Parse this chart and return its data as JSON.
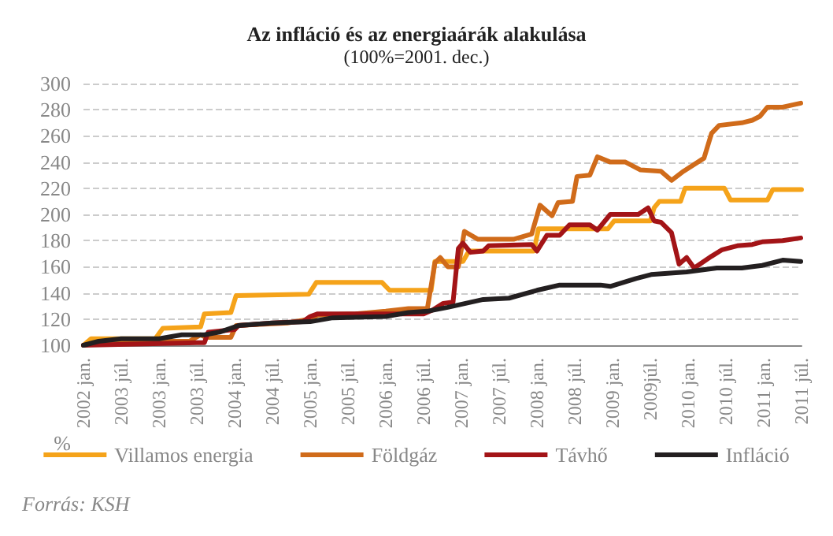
{
  "chart_data": {
    "type": "line",
    "title": "Az infláció és az energiaárák alakulása",
    "subtitle": "(100%=2001. dec.)",
    "ylabel": "%",
    "annotations": [
      "Forrás: KSH"
    ],
    "xlim": [
      2002,
      2011.5
    ],
    "xticks": [
      {
        "value": 2002,
        "label": "2002 jan."
      },
      {
        "value": 2002.5,
        "label": "2003 júl."
      },
      {
        "value": 2003,
        "label": "2003 jan."
      },
      {
        "value": 2003.5,
        "label": "2003 júl."
      },
      {
        "value": 2004,
        "label": "2004 jan."
      },
      {
        "value": 2004.5,
        "label": "2004 júl."
      },
      {
        "value": 2005,
        "label": "2005 jan."
      },
      {
        "value": 2005.5,
        "label": "2005 júl."
      },
      {
        "value": 2006,
        "label": "2006 jan."
      },
      {
        "value": 2006.5,
        "label": "2006 júl."
      },
      {
        "value": 2007,
        "label": "2007 jan."
      },
      {
        "value": 2007.5,
        "label": "2007 júl."
      },
      {
        "value": 2008,
        "label": "2008 jan."
      },
      {
        "value": 2008.5,
        "label": "2008 júl."
      },
      {
        "value": 2009,
        "label": "2009 jan."
      },
      {
        "value": 2009.5,
        "label": "2009júl."
      },
      {
        "value": 2010,
        "label": "2010 jan."
      },
      {
        "value": 2010.5,
        "label": "2010 júl."
      },
      {
        "value": 2011,
        "label": "2011 jan."
      },
      {
        "value": 2011.5,
        "label": "2011 júl."
      }
    ],
    "ylim": [
      100,
      300
    ],
    "yticks": [
      100,
      120,
      140,
      160,
      180,
      200,
      220,
      240,
      260,
      280,
      300
    ],
    "grid": "y",
    "legend": "bottom",
    "marker": "none",
    "line_style": "solid",
    "series": [
      {
        "name": "Villamos energia",
        "color": "#f5a31a",
        "x": [
          2002,
          2002.1,
          2002.95,
          2003.05,
          2003.55,
          2003.6,
          2003.95,
          2004.02,
          2004.98,
          2005.08,
          2005.95,
          2006.05,
          2006.6,
          2006.65,
          2007.02,
          2007.1,
          2007.96,
          2008.02,
          2008.94,
          2009.02,
          2009.5,
          2009.55,
          2009.62,
          2009.9,
          2009.96,
          2010.48,
          2010.56,
          2011.05,
          2011.12,
          2011.5
        ],
        "values": [
          100,
          105,
          105,
          113,
          114,
          124,
          125,
          138,
          139,
          148,
          148,
          142,
          142,
          164,
          164,
          172,
          172,
          189,
          189,
          195,
          195,
          205,
          210,
          210,
          220,
          220,
          211,
          211,
          219,
          219
        ]
      },
      {
        "name": "Földgáz",
        "color": "#d06b1a",
        "x": [
          2002,
          2002.2,
          2003.0,
          2003.4,
          2003.55,
          2003.62,
          2003.95,
          2004.02,
          2004.7,
          2005.0,
          2005.1,
          2005.6,
          2005.8,
          2006.0,
          2006.3,
          2006.55,
          2006.65,
          2006.72,
          2006.82,
          2006.96,
          2007.04,
          2007.22,
          2007.69,
          2007.93,
          2008.04,
          2008.2,
          2008.28,
          2008.47,
          2008.53,
          2008.7,
          2008.8,
          2008.97,
          2009.17,
          2009.37,
          2009.64,
          2009.78,
          2009.94,
          2010.21,
          2010.31,
          2010.41,
          2010.71,
          2010.85,
          2010.95,
          2011.05,
          2011.25,
          2011.49
        ],
        "values": [
          100,
          102,
          103,
          103,
          108,
          106,
          106,
          115,
          117,
          120,
          123,
          124,
          125,
          126,
          128,
          128,
          163,
          167,
          160,
          160,
          187,
          181,
          181,
          185,
          207,
          199,
          209,
          210,
          229,
          230,
          244,
          240,
          240,
          234,
          233,
          226,
          233,
          243,
          262,
          268,
          270,
          272,
          275,
          282,
          282,
          285
        ]
      },
      {
        "name": "Távhő",
        "color": "#a31417",
        "x": [
          2002,
          2003.5,
          2003.6,
          2003.65,
          2004.0,
          2004.05,
          2004.5,
          2004.9,
          2005.0,
          2005.1,
          2006.5,
          2006.62,
          2006.76,
          2006.89,
          2006.96,
          2007.02,
          2007.12,
          2007.29,
          2007.36,
          2007.93,
          2008.0,
          2008.13,
          2008.3,
          2008.43,
          2008.7,
          2008.8,
          2008.97,
          2009.34,
          2009.47,
          2009.55,
          2009.64,
          2009.78,
          2009.88,
          2009.98,
          2010.08,
          2010.18,
          2010.31,
          2010.45,
          2010.65,
          2010.85,
          2010.98,
          2011.25,
          2011.49
        ],
        "values": [
          100,
          102,
          102,
          110,
          112,
          115,
          117,
          118,
          122,
          124,
          124,
          127,
          132,
          133,
          174,
          178,
          171,
          172,
          176,
          177,
          172,
          184,
          184,
          192,
          192,
          188,
          200,
          200,
          205,
          195,
          194,
          186,
          162,
          167,
          159,
          163,
          168,
          173,
          176,
          177,
          179,
          180,
          182
        ]
      },
      {
        "name": "Infláció",
        "color": "#231f20",
        "x": [
          2002,
          2002.2,
          2002.5,
          2003.0,
          2003.3,
          2003.6,
          2003.8,
          2004.05,
          2004.5,
          2005.0,
          2005.3,
          2006.0,
          2006.3,
          2006.55,
          2006.82,
          2007.29,
          2007.63,
          2008.0,
          2008.3,
          2008.84,
          2008.97,
          2009.31,
          2009.51,
          2009.98,
          2010.38,
          2010.71,
          2010.98,
          2011.25,
          2011.49
        ],
        "values": [
          100,
          103,
          105,
          105,
          108,
          108,
          110,
          115,
          117,
          118,
          121,
          122,
          125,
          126,
          129,
          135,
          136,
          142,
          146,
          146,
          145,
          151,
          154,
          156,
          159,
          159,
          161,
          165,
          164
        ]
      }
    ]
  }
}
